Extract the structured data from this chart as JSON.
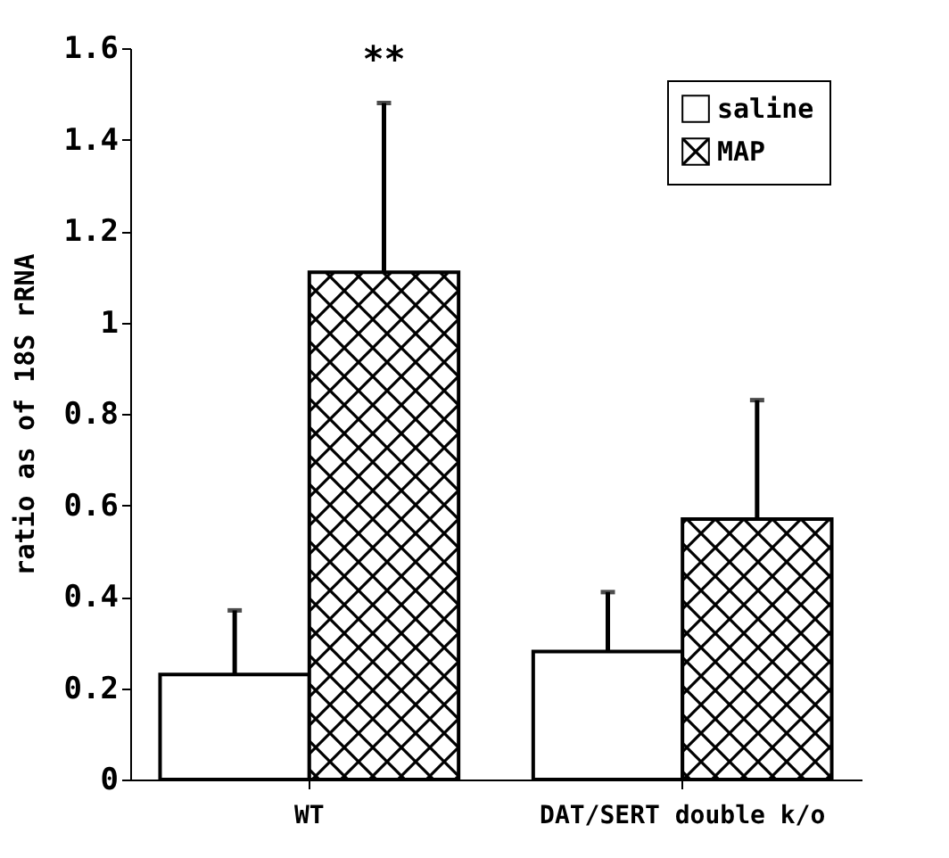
{
  "chart_data": {
    "type": "bar",
    "ylabel": "ratio as of 18S rRNA",
    "categories": [
      "WT",
      "DAT/SERT double k/o"
    ],
    "series": [
      {
        "name": "saline",
        "color": "#ffffff",
        "values": [
          0.23,
          0.28
        ],
        "errors": [
          [
            0.23,
            0.37
          ],
          [
            0.28,
            0.41
          ]
        ]
      },
      {
        "name": "MAP",
        "color": "#000000",
        "values": [
          1.11,
          0.57
        ],
        "errors": [
          [
            1.11,
            1.48
          ],
          [
            0.57,
            0.83
          ]
        ]
      }
    ],
    "ylim": [
      0,
      1.6
    ],
    "yticks": [
      0,
      0.2,
      0.4,
      0.6,
      0.8,
      1,
      1.2,
      1.4,
      1.6
    ],
    "annotations": [
      "**"
    ],
    "legend": "top right",
    "grid": false
  }
}
